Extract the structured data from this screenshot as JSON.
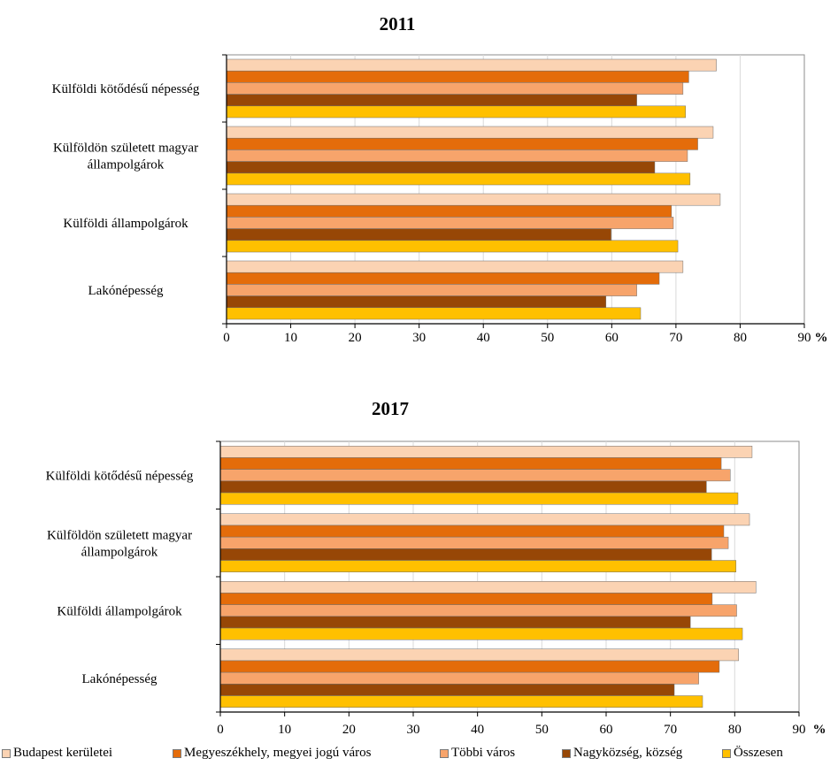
{
  "chart_data": [
    {
      "type": "bar",
      "orientation": "horizontal",
      "title": "2011",
      "xlabel": "%",
      "xlim": [
        0,
        90
      ],
      "xticks": [
        0,
        10,
        20,
        30,
        40,
        50,
        60,
        70,
        80,
        90
      ],
      "grid": "vertical",
      "categories": [
        "Külföldi kötődésű népesség",
        "Külföldön született magyar állampolgárok",
        "Külföldi állampolgárok",
        "Lakónépesség"
      ],
      "category_lines": [
        [
          "Külföldi kötődésű népesség"
        ],
        [
          "Külföldön született magyar",
          "állampolgárok"
        ],
        [
          "Külföldi állampolgárok"
        ],
        [
          "Lakónépesség"
        ]
      ],
      "series": [
        {
          "name": "Budapest kerületei",
          "color": "#FBD3B3",
          "values": [
            76.3,
            75.8,
            76.9,
            71.1
          ]
        },
        {
          "name": "Megyeszékhely, megyei jogú város",
          "color": "#E46C0A",
          "values": [
            72.0,
            73.4,
            69.3,
            67.4
          ]
        },
        {
          "name": "Többi város",
          "color": "#F7A46B",
          "values": [
            71.1,
            71.8,
            69.6,
            63.9
          ]
        },
        {
          "name": "Nagyközség, község",
          "color": "#974706",
          "values": [
            63.9,
            66.7,
            59.9,
            59.1
          ]
        },
        {
          "name": "Összesen",
          "color": "#FFC000",
          "values": [
            71.5,
            72.2,
            70.3,
            64.5
          ]
        }
      ]
    },
    {
      "type": "bar",
      "orientation": "horizontal",
      "title": "2017",
      "xlabel": "%",
      "xlim": [
        0,
        90
      ],
      "xticks": [
        0,
        10,
        20,
        30,
        40,
        50,
        60,
        70,
        80,
        90
      ],
      "grid": "vertical",
      "categories": [
        "Külföldi kötődésű népesség",
        "Külföldön született magyar állampolgárok",
        "Külföldi állampolgárok",
        "Lakónépesség"
      ],
      "category_lines": [
        [
          "Külföldi kötődésű népesség"
        ],
        [
          "Külföldön született magyar",
          "állampolgárok"
        ],
        [
          "Külföldi állampolgárok"
        ],
        [
          "Lakónépesség"
        ]
      ],
      "series": [
        {
          "name": "Budapest kerületei",
          "color": "#FBD3B3",
          "values": [
            82.7,
            82.3,
            83.3,
            80.6
          ]
        },
        {
          "name": "Megyeszékhely, megyei jogú város",
          "color": "#E46C0A",
          "values": [
            77.9,
            78.3,
            76.5,
            77.6
          ]
        },
        {
          "name": "Többi város",
          "color": "#F7A46B",
          "values": [
            79.3,
            79.0,
            80.3,
            74.4
          ]
        },
        {
          "name": "Nagyközség, község",
          "color": "#974706",
          "values": [
            75.6,
            76.4,
            73.1,
            70.6
          ]
        },
        {
          "name": "Összesen",
          "color": "#FFC000",
          "values": [
            80.5,
            80.2,
            81.2,
            75.0
          ]
        }
      ]
    }
  ],
  "legend": [
    {
      "label": "Budapest kerületei",
      "color": "#FBD3B3"
    },
    {
      "label": "Megyeszékhely, megyei jogú város",
      "color": "#E46C0A"
    },
    {
      "label": "Többi város",
      "color": "#F7A46B"
    },
    {
      "label": "Nagyközség, község",
      "color": "#974706"
    },
    {
      "label": "Összesen",
      "color": "#FFC000"
    }
  ]
}
